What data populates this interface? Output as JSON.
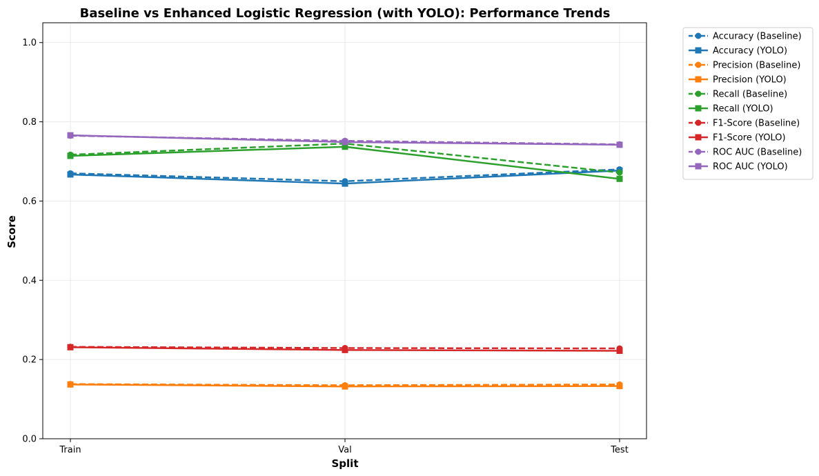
{
  "chart_data": {
    "type": "line",
    "title": "Baseline vs Enhanced Logistic Regression (with YOLO): Performance Trends",
    "xlabel": "Split",
    "ylabel": "Score",
    "categories": [
      "Train",
      "Val",
      "Test"
    ],
    "ylim": [
      0.0,
      1.05
    ],
    "yticks": [
      "0.0",
      "0.2",
      "0.4",
      "0.6",
      "0.8",
      "1.0"
    ],
    "grid": true,
    "legend_position": "outside-top-right",
    "series": [
      {
        "name": "Accuracy (Baseline)",
        "values": [
          0.67,
          0.65,
          0.68
        ],
        "color": "#1f77b4",
        "marker": "circle",
        "linestyle": "dashed"
      },
      {
        "name": "Accuracy (YOLO)",
        "values": [
          0.667,
          0.644,
          0.677
        ],
        "color": "#1f77b4",
        "marker": "square",
        "linestyle": "solid"
      },
      {
        "name": "Precision (Baseline)",
        "values": [
          0.138,
          0.135,
          0.137
        ],
        "color": "#ff7f0e",
        "marker": "circle",
        "linestyle": "dashed"
      },
      {
        "name": "Precision (YOLO)",
        "values": [
          0.137,
          0.132,
          0.133
        ],
        "color": "#ff7f0e",
        "marker": "square",
        "linestyle": "solid"
      },
      {
        "name": "Recall (Baseline)",
        "values": [
          0.717,
          0.745,
          0.672
        ],
        "color": "#2ca02c",
        "marker": "circle",
        "linestyle": "dashed"
      },
      {
        "name": "Recall (YOLO)",
        "values": [
          0.714,
          0.737,
          0.656
        ],
        "color": "#2ca02c",
        "marker": "square",
        "linestyle": "solid"
      },
      {
        "name": "F1-Score (Baseline)",
        "values": [
          0.232,
          0.229,
          0.228
        ],
        "color": "#d62728",
        "marker": "circle",
        "linestyle": "dashed"
      },
      {
        "name": "F1-Score (YOLO)",
        "values": [
          0.231,
          0.224,
          0.222
        ],
        "color": "#d62728",
        "marker": "square",
        "linestyle": "solid"
      },
      {
        "name": "ROC AUC (Baseline)",
        "values": [
          0.765,
          0.752,
          0.743
        ],
        "color": "#9467bd",
        "marker": "circle",
        "linestyle": "dashed"
      },
      {
        "name": "ROC AUC (YOLO)",
        "values": [
          0.766,
          0.749,
          0.742
        ],
        "color": "#9467bd",
        "marker": "square",
        "linestyle": "solid"
      }
    ]
  }
}
